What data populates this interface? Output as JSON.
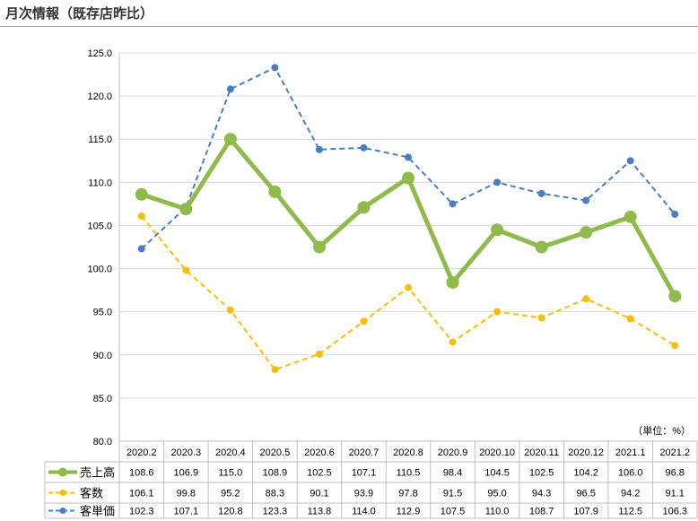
{
  "header": {
    "title": "月次情報（既存店昨比）"
  },
  "chart_data": {
    "type": "line",
    "title": "月次情報（既存店昨比）",
    "unit_label": "（単位：%）",
    "ylim": [
      80,
      125
    ],
    "yticks": [
      "80.0",
      "85.0",
      "90.0",
      "95.0",
      "100.0",
      "105.0",
      "110.0",
      "115.0",
      "120.0",
      "125.0"
    ],
    "categories": [
      "2020.2",
      "2020.3",
      "2020.4",
      "2020.5",
      "2020.6",
      "2020.7",
      "2020.8",
      "2020.9",
      "2020.10",
      "2020.11",
      "2020.12",
      "2021.1",
      "2021.2"
    ],
    "legend": "data-table",
    "series": [
      {
        "name": "売上高",
        "color": "#8fba4c",
        "style": "solid",
        "values": [
          108.6,
          106.9,
          115.0,
          108.9,
          102.5,
          107.1,
          110.5,
          98.4,
          104.5,
          102.5,
          104.2,
          106.0,
          96.8
        ]
      },
      {
        "name": "客数",
        "color": "#fbbd08",
        "style": "dashed",
        "values": [
          106.1,
          99.8,
          95.2,
          88.3,
          90.1,
          93.9,
          97.8,
          91.5,
          95.0,
          94.3,
          96.5,
          94.2,
          91.1
        ]
      },
      {
        "name": "客単価",
        "color": "#4a7ec4",
        "style": "dashed",
        "values": [
          102.3,
          107.1,
          120.8,
          123.3,
          113.8,
          114.0,
          112.9,
          107.5,
          110.0,
          108.7,
          107.9,
          112.5,
          106.3
        ]
      }
    ]
  }
}
